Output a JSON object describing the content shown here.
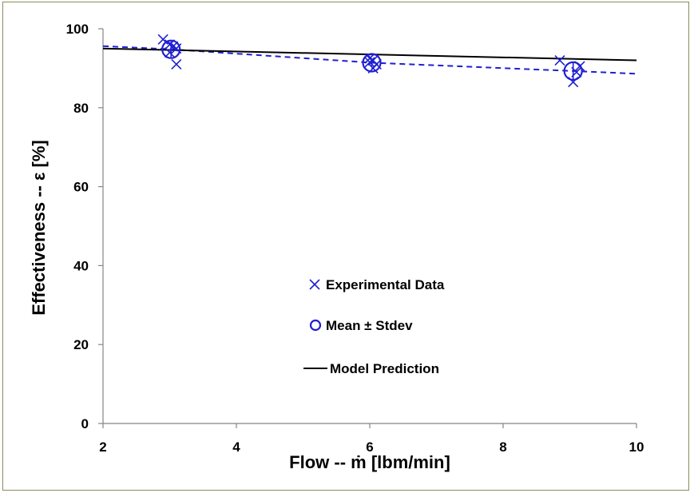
{
  "chart_data": {
    "type": "scatter",
    "title": "",
    "xlabel": "Flow -- ṁ [lbm/min]",
    "ylabel": "Effectiveness -- ε [%]",
    "xlim": [
      2,
      10
    ],
    "ylim": [
      0,
      100
    ],
    "xticks": [
      "2",
      "4",
      "6",
      "8",
      "10"
    ],
    "yticks": [
      "0",
      "20",
      "40",
      "60",
      "80",
      "100"
    ],
    "grid": false,
    "legend_position": "center",
    "series": [
      {
        "name": "Experimental Data",
        "marker": "x",
        "color": "#2020d0",
        "points": [
          [
            2.9,
            97.3
          ],
          [
            3.0,
            96.0
          ],
          [
            3.05,
            95.5
          ],
          [
            3.1,
            95.0
          ],
          [
            3.0,
            94.0
          ],
          [
            3.1,
            91.0
          ],
          [
            6.0,
            92.5
          ],
          [
            6.05,
            92.0
          ],
          [
            6.0,
            91.5
          ],
          [
            6.1,
            91.0
          ],
          [
            6.05,
            90.0
          ],
          [
            8.85,
            92.0
          ],
          [
            9.15,
            90.5
          ],
          [
            9.1,
            89.0
          ],
          [
            9.05,
            86.5
          ]
        ]
      },
      {
        "name": "Mean ± Stdev",
        "marker": "o",
        "color": "#2020d0",
        "points": [
          [
            3.02,
            94.8
          ],
          [
            6.03,
            91.4
          ],
          [
            9.05,
            89.3
          ]
        ],
        "stdev": [
          2.0,
          0.9,
          2.2
        ]
      },
      {
        "name": "Model Prediction",
        "marker": "line",
        "color": "#000000",
        "x": [
          2,
          10
        ],
        "y": [
          95.0,
          92.0
        ]
      },
      {
        "name": "",
        "marker": "dashed",
        "color": "#2020d0",
        "x": [
          2,
          3.02,
          6.03,
          9.05,
          10
        ],
        "y": [
          95.6,
          94.8,
          91.4,
          89.3,
          88.6
        ]
      }
    ]
  }
}
